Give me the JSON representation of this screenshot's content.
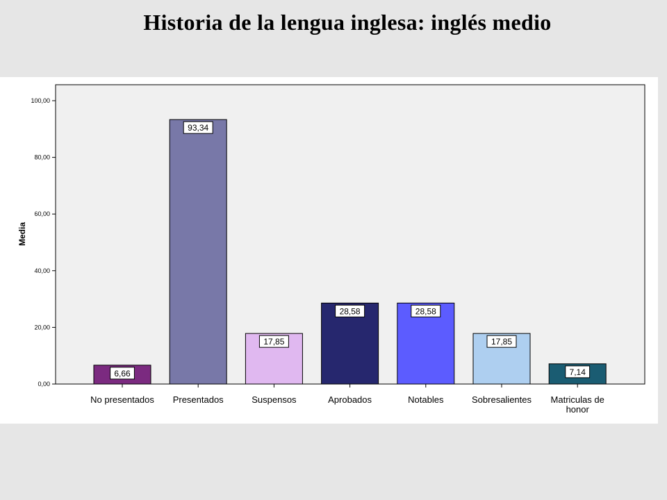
{
  "slide": {
    "title": "Historia de la lengua inglesa: inglés medio"
  },
  "chart_data": {
    "type": "bar",
    "title": "",
    "xlabel": "",
    "ylabel": "Media",
    "ylim": [
      0,
      100
    ],
    "yticks": [
      0,
      20,
      40,
      60,
      80,
      100
    ],
    "ytick_labels": [
      "0,00",
      "20,00",
      "40,00",
      "60,00",
      "80,00",
      "100,00"
    ],
    "grid": false,
    "categories": [
      "No presentados",
      "Presentados",
      "Suspensos",
      "Aprobados",
      "Notables",
      "Sobresalientes",
      "Matriculas de honor"
    ],
    "values": [
      6.66,
      93.34,
      17.85,
      28.58,
      28.58,
      17.85,
      7.14
    ],
    "value_labels": [
      "6,66",
      "93,34",
      "17,85",
      "28,58",
      "28,58",
      "17,85",
      "7,14"
    ],
    "colors": [
      "#7b2a80",
      "#7878a8",
      "#e0b8f0",
      "#26276e",
      "#5c5cff",
      "#aecff0",
      "#1a5c72"
    ],
    "plot_background": "#f0f0f0"
  }
}
